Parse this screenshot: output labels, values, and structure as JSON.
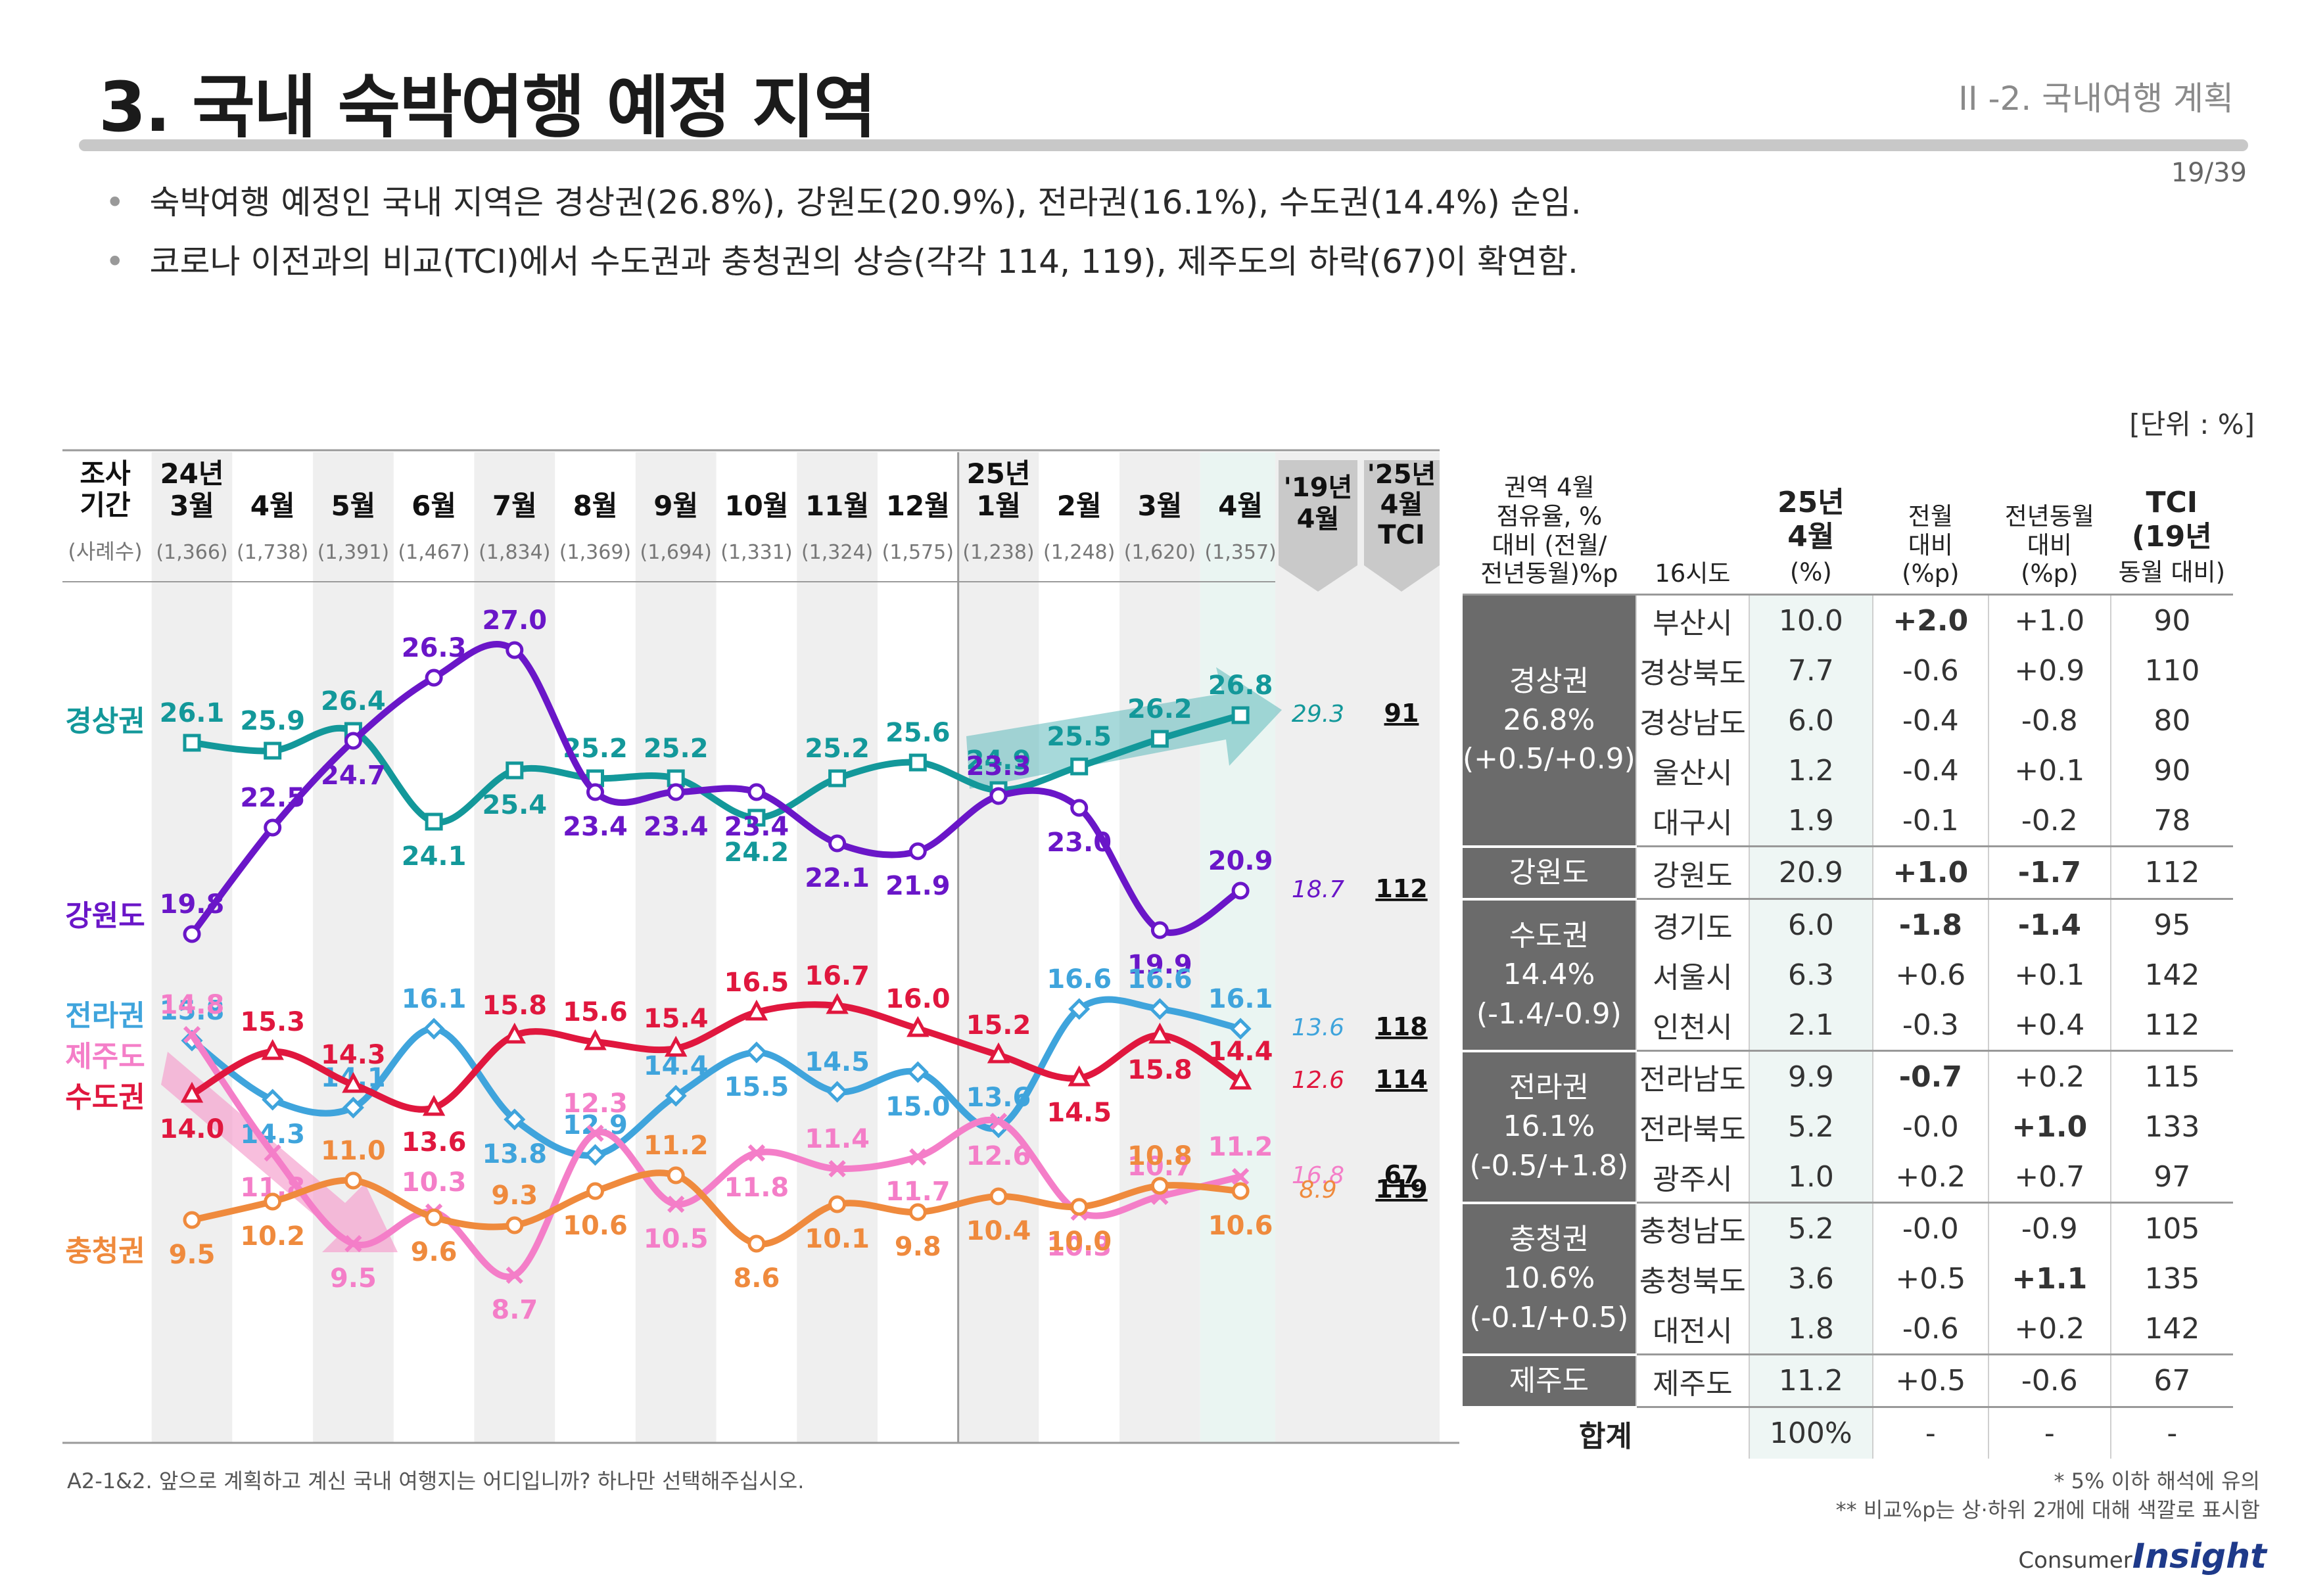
{
  "header": {
    "title": "3. 국내 숙박여행 예정 지역",
    "section": "II -2. 국내여행 계획",
    "page": "19/39"
  },
  "bullets": [
    "숙박여행 예정인 국내 지역은 경상권(26.8%), 강원도(20.9%), 전라권(16.1%), 수도권(14.4%) 순임.",
    "코로나 이전과의 비교(TCI)에서 수도권과 충청권의 상승(각각 114, 119), 제주도의 하락(67)이 확연함."
  ],
  "unit_label": "[단위 : %]",
  "colors": {
    "경상권": "#13989a",
    "강원도": "#6a16c8",
    "전라권": "#3fa4dc",
    "제주도": "#f47ec8",
    "수도권": "#e0173e",
    "충청권": "#ef8a3d",
    "grey_band": "#efefef",
    "teal_arrow": "#5fb9bb",
    "pink_arrow": "#f5a3cf",
    "region_header": "#6b6b6b",
    "positive": "#e0102a",
    "negative": "#1032d8"
  },
  "chart_data": {
    "type": "line",
    "period_header": "조사\n기간",
    "sample_header": "(사례수)",
    "periods": [
      {
        "year": "24년",
        "month": "3월",
        "n": "(1,366)"
      },
      {
        "year": "",
        "month": "4월",
        "n": "(1,738)"
      },
      {
        "year": "",
        "month": "5월",
        "n": "(1,391)"
      },
      {
        "year": "",
        "month": "6월",
        "n": "(1,467)"
      },
      {
        "year": "",
        "month": "7월",
        "n": "(1,834)"
      },
      {
        "year": "",
        "month": "8월",
        "n": "(1,369)"
      },
      {
        "year": "",
        "month": "9월",
        "n": "(1,694)"
      },
      {
        "year": "",
        "month": "10월",
        "n": "(1,331)"
      },
      {
        "year": "",
        "month": "11월",
        "n": "(1,324)"
      },
      {
        "year": "",
        "month": "12월",
        "n": "(1,575)"
      },
      {
        "year": "25년",
        "month": "1월",
        "n": "(1,238)"
      },
      {
        "year": "",
        "month": "2월",
        "n": "(1,248)"
      },
      {
        "year": "",
        "month": "3월",
        "n": "(1,620)"
      },
      {
        "year": "",
        "month": "4월",
        "n": "(1,357)"
      }
    ],
    "extra_headers": {
      "y19": "'19년\n4월",
      "tci": "'25년\n4월\nTCI"
    },
    "series": [
      {
        "name": "경상권",
        "values": [
          26.1,
          25.9,
          26.4,
          24.1,
          25.4,
          25.2,
          25.2,
          24.2,
          25.2,
          25.6,
          24.9,
          25.5,
          26.2,
          26.8
        ],
        "labels": [
          "26.1",
          "25.9",
          "26.4",
          "24.1",
          "25.4",
          "25.2",
          "25.2",
          "24.2",
          "25.2",
          "25.6",
          "24.9",
          "25.5",
          "26.2",
          "26.8"
        ],
        "y19": "29.3",
        "tci": "91"
      },
      {
        "name": "강원도",
        "values": [
          19.8,
          22.5,
          24.7,
          26.3,
          27.0,
          23.4,
          23.4,
          23.4,
          22.1,
          21.9,
          23.3,
          23.0,
          19.9,
          20.9
        ],
        "labels": [
          "19.8",
          "22.5",
          "24.7",
          "26.3",
          "27.0",
          "23.4",
          "23.4",
          "23.4",
          "22.1",
          "21.9",
          "23.3",
          "23.0",
          "19.9",
          "20.9"
        ],
        "y19": "18.7",
        "tci": "112"
      },
      {
        "name": "전라권",
        "values": [
          15.8,
          14.3,
          14.1,
          16.1,
          13.8,
          12.9,
          14.4,
          15.5,
          14.5,
          15.0,
          13.6,
          16.6,
          16.6,
          16.1
        ],
        "labels": [
          "15.8",
          "14.3",
          "14.1",
          "16.1",
          "13.8",
          "12.9",
          "14.4",
          "15.5",
          "14.5",
          "15.0",
          "13.6",
          "16.6",
          "16.6",
          "16.1"
        ],
        "y19": "13.6",
        "tci": "118"
      },
      {
        "name": "제주도",
        "values": [
          14.8,
          11.8,
          9.5,
          10.3,
          8.7,
          12.3,
          10.5,
          11.8,
          11.4,
          11.7,
          12.6,
          10.3,
          10.7,
          11.2
        ],
        "labels": [
          "14.8",
          "11.8",
          "9.5",
          "10.3",
          "8.7",
          "12.3",
          "10.5",
          "11.8",
          "11.4",
          "11.7",
          "12.6",
          "10.3",
          "10.7",
          "11.2"
        ],
        "y19": "16.8",
        "tci": "67"
      },
      {
        "name": "수도권",
        "values": [
          14.0,
          15.3,
          14.3,
          13.6,
          15.8,
          15.6,
          15.4,
          16.5,
          16.7,
          16.0,
          15.2,
          14.5,
          15.8,
          14.4
        ],
        "labels": [
          "14.0",
          "15.3",
          "14.3",
          "13.6",
          "15.8",
          "15.6",
          "15.4",
          "16.5",
          "16.7",
          "16.0",
          "15.2",
          "14.5",
          "15.8",
          "14.4"
        ],
        "y19": "12.6",
        "tci": "114"
      },
      {
        "name": "충청권",
        "values": [
          9.5,
          10.2,
          11.0,
          9.6,
          9.3,
          10.6,
          11.2,
          8.6,
          10.1,
          9.8,
          10.4,
          10.0,
          10.8,
          10.6
        ],
        "labels": [
          "9.5",
          "10.2",
          "11.0",
          "9.6",
          "9.3",
          "10.6",
          "11.2",
          "8.6",
          "10.1",
          "9.8",
          "10.4",
          "10.0",
          "10.8",
          "10.6"
        ],
        "y19": "8.9",
        "tci": "119"
      }
    ]
  },
  "table": {
    "headers": {
      "region": "권역 4월\n점유율, %\n대비 (전월/\n전년동월)%p",
      "sido": "16시도",
      "share": "25년\n4월\n(%)",
      "mom": "전월\n대비\n(%p)",
      "yoy": "전년동월\n대비\n(%p)",
      "tci": "TCI\n(19년\n동월 대비)"
    },
    "groups": [
      {
        "label": "경상권\n26.8%\n(+0.5/+0.9)",
        "rows": [
          {
            "sido": "부산시",
            "share": "10.0",
            "mom": "+2.0",
            "mom_hl": "pos",
            "yoy": "+1.0",
            "yoy_hl": "",
            "tci": "90"
          },
          {
            "sido": "경상북도",
            "share": "7.7",
            "mom": "-0.6",
            "mom_hl": "",
            "yoy": "+0.9",
            "yoy_hl": "",
            "tci": "110"
          },
          {
            "sido": "경상남도",
            "share": "6.0",
            "mom": "-0.4",
            "mom_hl": "",
            "yoy": "-0.8",
            "yoy_hl": "",
            "tci": "80"
          },
          {
            "sido": "울산시",
            "share": "1.2",
            "mom": "-0.4",
            "mom_hl": "",
            "yoy": "+0.1",
            "yoy_hl": "",
            "tci": "90"
          },
          {
            "sido": "대구시",
            "share": "1.9",
            "mom": "-0.1",
            "mom_hl": "",
            "yoy": "-0.2",
            "yoy_hl": "",
            "tci": "78"
          }
        ]
      },
      {
        "label": "강원도",
        "rows": [
          {
            "sido": "강원도",
            "share": "20.9",
            "mom": "+1.0",
            "mom_hl": "pos",
            "yoy": "-1.7",
            "yoy_hl": "neg",
            "tci": "112"
          }
        ]
      },
      {
        "label": "수도권\n14.4%\n(-1.4/-0.9)",
        "rows": [
          {
            "sido": "경기도",
            "share": "6.0",
            "mom": "-1.8",
            "mom_hl": "neg",
            "yoy": "-1.4",
            "yoy_hl": "neg",
            "tci": "95"
          },
          {
            "sido": "서울시",
            "share": "6.3",
            "mom": "+0.6",
            "mom_hl": "",
            "yoy": "+0.1",
            "yoy_hl": "",
            "tci": "142"
          },
          {
            "sido": "인천시",
            "share": "2.1",
            "mom": "-0.3",
            "mom_hl": "",
            "yoy": "+0.4",
            "yoy_hl": "",
            "tci": "112"
          }
        ]
      },
      {
        "label": "전라권\n16.1%\n(-0.5/+1.8)",
        "rows": [
          {
            "sido": "전라남도",
            "share": "9.9",
            "mom": "-0.7",
            "mom_hl": "neg",
            "yoy": "+0.2",
            "yoy_hl": "",
            "tci": "115"
          },
          {
            "sido": "전라북도",
            "share": "5.2",
            "mom": "-0.0",
            "mom_hl": "",
            "yoy": "+1.0",
            "yoy_hl": "pos",
            "tci": "133"
          },
          {
            "sido": "광주시",
            "share": "1.0",
            "mom": "+0.2",
            "mom_hl": "",
            "yoy": "+0.7",
            "yoy_hl": "",
            "tci": "97"
          }
        ]
      },
      {
        "label": "충청권\n10.6%\n(-0.1/+0.5)",
        "rows": [
          {
            "sido": "충청남도",
            "share": "5.2",
            "mom": "-0.0",
            "mom_hl": "",
            "yoy": "-0.9",
            "yoy_hl": "",
            "tci": "105"
          },
          {
            "sido": "충청북도",
            "share": "3.6",
            "mom": "+0.5",
            "mom_hl": "",
            "yoy": "+1.1",
            "yoy_hl": "pos",
            "tci": "135"
          },
          {
            "sido": "대전시",
            "share": "1.8",
            "mom": "-0.6",
            "mom_hl": "",
            "yoy": "+0.2",
            "yoy_hl": "",
            "tci": "142"
          }
        ]
      },
      {
        "label": "제주도",
        "rows": [
          {
            "sido": "제주도",
            "share": "11.2",
            "mom": "+0.5",
            "mom_hl": "",
            "yoy": "-0.6",
            "yoy_hl": "",
            "tci": "67"
          }
        ]
      }
    ],
    "total": {
      "label": "합계",
      "share": "100%",
      "mom": "-",
      "yoy": "-",
      "tci": "-"
    }
  },
  "footnotes": {
    "question": "A2-1&2. 앞으로 계획하고 계신 국내 여행지는 어디입니까? 하나만 선택해주십시오.",
    "note1": "* 5% 이하 해석에 유의",
    "note2": "** 비교%p는 상·하위 2개에 대해 색깔로 표시함"
  },
  "logo": {
    "line1": "Consumer",
    "line2": "Insight"
  }
}
